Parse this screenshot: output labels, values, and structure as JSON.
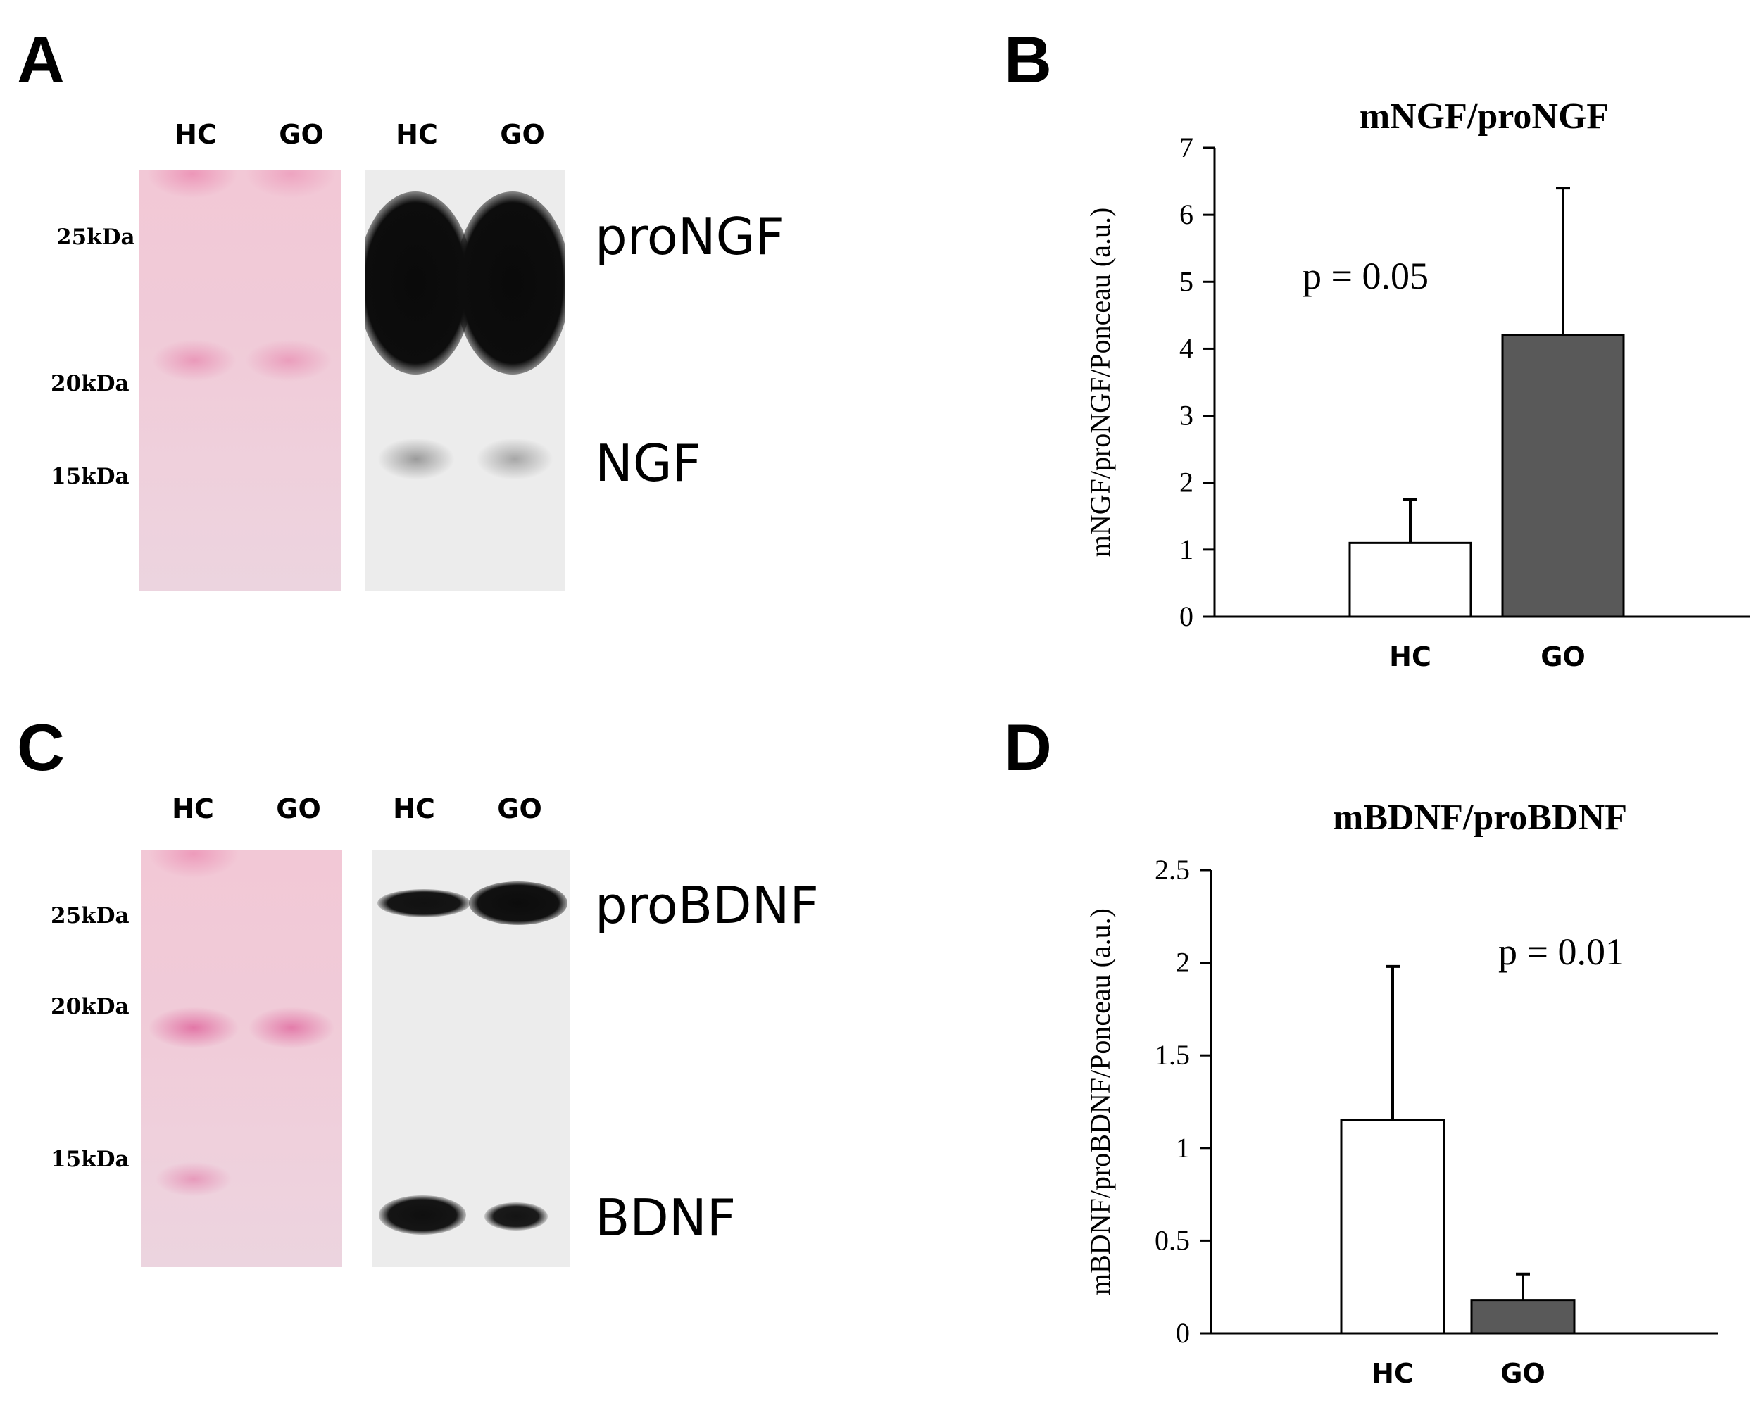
{
  "panels": {
    "a": {
      "letter": "A",
      "lanes_ponceau": [
        "HC",
        "GO"
      ],
      "lanes_blot": [
        "HC",
        "GO"
      ],
      "markers": [
        "25kDa",
        "20kDa",
        "15kDa"
      ],
      "bands": [
        "proNGF",
        "NGF"
      ]
    },
    "b": {
      "letter": "B"
    },
    "c": {
      "letter": "C",
      "lanes_ponceau": [
        "HC",
        "GO"
      ],
      "lanes_blot": [
        "HC",
        "GO"
      ],
      "markers": [
        "25kDa",
        "20kDa",
        "15kDa"
      ],
      "bands": [
        "proBDNF",
        "BDNF"
      ]
    },
    "d": {
      "letter": "D"
    }
  },
  "colors": {
    "ponceau_band": "#e8a0b8",
    "film_band": "#111111",
    "hc_bar": "#ffffff",
    "go_bar": "#595959",
    "axis": "#000000"
  },
  "chart_data": [
    {
      "type": "bar",
      "title": "mNGF/proNGF",
      "ylabel": "mNGF/proNGF/Ponceau (a.u.)",
      "xlabel": "",
      "categories": [
        "HC",
        "GO"
      ],
      "values": [
        1.1,
        4.2
      ],
      "error_bars": [
        0.65,
        2.2
      ],
      "ylim": [
        0,
        7
      ],
      "yticks": [
        "0",
        "1",
        "2",
        "3",
        "4",
        "5",
        "6",
        "7"
      ],
      "annotation": "p = 0.05",
      "grid": false
    },
    {
      "type": "bar",
      "title": "mBDNF/proBDNF",
      "ylabel": "mBDNF/proBDNF/Ponceau (a.u.)",
      "xlabel": "",
      "categories": [
        "HC",
        "GO"
      ],
      "values": [
        1.15,
        0.18
      ],
      "error_bars": [
        0.83,
        0.14
      ],
      "ylim": [
        0,
        2.5
      ],
      "yticks": [
        "0",
        "0.5",
        "1",
        "1.5",
        "2",
        "2.5"
      ],
      "annotation": "p = 0.01",
      "grid": false
    }
  ]
}
